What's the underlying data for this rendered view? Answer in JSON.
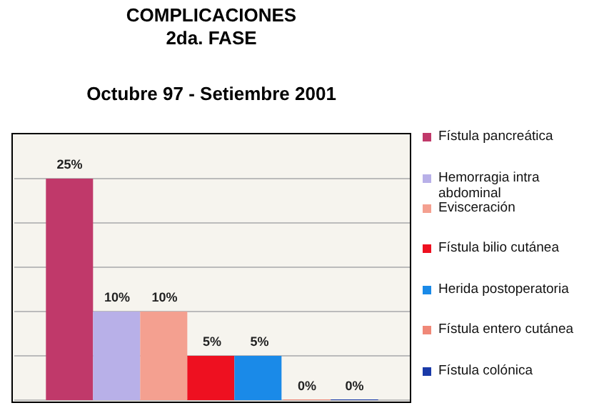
{
  "chart_data": {
    "type": "bar",
    "title": "COMPLICACIONES\n2da. FASE",
    "subtitle": "Octubre 97 - Setiembre 2001",
    "categories": [
      null
    ],
    "series": [
      {
        "name": "Fístula pancreática",
        "color": "#c0396a",
        "values": [
          25
        ],
        "value_labels": [
          "25%"
        ]
      },
      {
        "name": "Hemorragia intra abdominal",
        "color": "#b8b0e8",
        "values": [
          10
        ],
        "value_labels": [
          "10%"
        ]
      },
      {
        "name": "Evisceración",
        "color": "#f4a090",
        "values": [
          10
        ],
        "value_labels": [
          "10%"
        ]
      },
      {
        "name": "Fístula bilio cutánea",
        "color": "#ee1020",
        "values": [
          5
        ],
        "value_labels": [
          "5%"
        ]
      },
      {
        "name": "Herida postoperatoria",
        "color": "#1a8ae8",
        "values": [
          5
        ],
        "value_labels": [
          "5%"
        ]
      },
      {
        "name": "Fístula entero cutánea",
        "color": "#f08878",
        "values": [
          0
        ],
        "value_labels": [
          "0%"
        ]
      },
      {
        "name": "Fístula colónica",
        "color": "#1a3aa8",
        "values": [
          0
        ],
        "value_labels": [
          "0%"
        ]
      }
    ],
    "ylim": [
      0,
      30
    ],
    "yticks": [
      {
        "value": 0,
        "label": null
      },
      {
        "value": 5,
        "label": null
      },
      {
        "value": 10,
        "label": null
      },
      {
        "value": 15,
        "label": null
      },
      {
        "value": 20,
        "label": null
      },
      {
        "value": 25,
        "label": null
      }
    ],
    "tick_labels": false,
    "grid": "y",
    "legend": "right"
  }
}
